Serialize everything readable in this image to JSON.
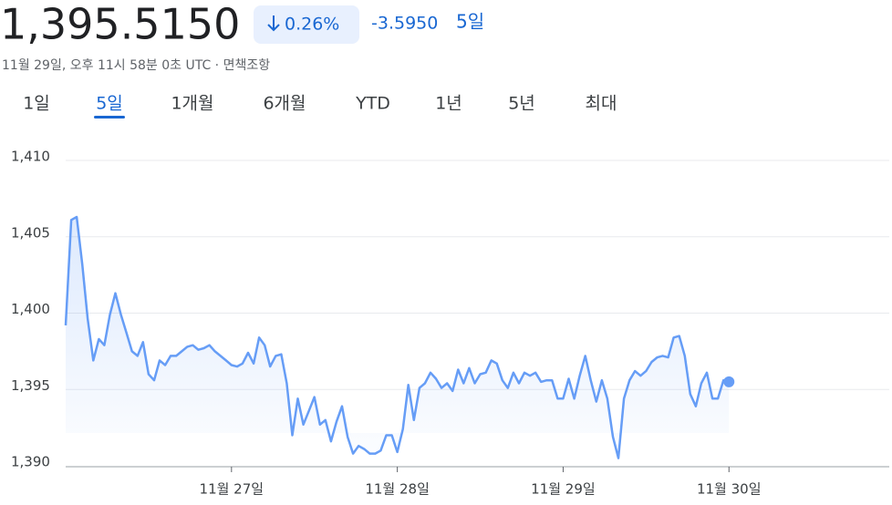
{
  "header": {
    "price": "1,395.5150",
    "change_percent": "0.26%",
    "change": "-3.5950",
    "period": "5일",
    "timestamp": "11월 29일, 오후 11시 58분 0초 UTC · 면책조항"
  },
  "tabs": {
    "items": [
      "1일",
      "5일",
      "1개월",
      "6개월",
      "YTD",
      "1년",
      "5년",
      "최대"
    ],
    "selected": 1
  },
  "chart_data": {
    "type": "line",
    "color": "#669df6",
    "values": [
      1399.2,
      1406.1,
      1406.3,
      1403.2,
      1399.6,
      1396.9,
      1398.3,
      1397.9,
      1399.9,
      1401.3,
      1399.9,
      1398.7,
      1397.5,
      1397.2,
      1398.1,
      1396.0,
      1395.6,
      1396.9,
      1396.6,
      1397.2,
      1397.2,
      1397.5,
      1397.8,
      1397.9,
      1397.6,
      1397.7,
      1397.9,
      1397.5,
      1397.2,
      1396.9,
      1396.6,
      1396.5,
      1396.7,
      1397.4,
      1396.7,
      1398.4,
      1397.9,
      1396.5,
      1397.2,
      1397.3,
      1395.4,
      1392.0,
      1394.4,
      1392.7,
      1393.6,
      1394.5,
      1392.7,
      1393.0,
      1391.6,
      1392.9,
      1393.9,
      1391.9,
      1390.8,
      1391.3,
      1391.1,
      1390.8,
      1390.8,
      1391.0,
      1392.0,
      1392.0,
      1390.9,
      1392.4,
      1395.3,
      1393.0,
      1395.1,
      1395.4,
      1396.1,
      1395.7,
      1395.1,
      1395.4,
      1394.9,
      1396.3,
      1395.4,
      1396.4,
      1395.4,
      1396.0,
      1396.1,
      1396.9,
      1396.7,
      1395.6,
      1395.1,
      1396.1,
      1395.4,
      1396.1,
      1395.9,
      1396.1,
      1395.5,
      1395.6,
      1395.6,
      1394.4,
      1394.4,
      1395.7,
      1394.4,
      1395.9,
      1397.2,
      1395.6,
      1394.2,
      1395.6,
      1394.4,
      1391.9,
      1390.5,
      1394.4,
      1395.6,
      1396.2,
      1395.9,
      1396.2,
      1396.8,
      1397.1,
      1397.2,
      1397.1,
      1398.4,
      1398.5,
      1397.2,
      1394.7,
      1393.9,
      1395.4,
      1396.1,
      1394.4,
      1394.4,
      1395.6,
      1395.5
    ],
    "xlim": [
      0,
      149
    ],
    "xticks": [
      {
        "value": 30,
        "label": "11월 27일"
      },
      {
        "value": 60,
        "label": "11월 28일"
      },
      {
        "value": 90,
        "label": "11월 29일"
      },
      {
        "value": 120,
        "label": "11월 30일"
      }
    ],
    "ylim": [
      1390,
      1410
    ],
    "yticks": [
      {
        "value": 1390,
        "label": "1,390"
      },
      {
        "value": 1395,
        "label": "1,395"
      },
      {
        "value": 1400,
        "label": "1,400"
      },
      {
        "value": 1405,
        "label": "1,405"
      },
      {
        "value": 1410,
        "label": "1,410"
      }
    ],
    "grid": true
  }
}
